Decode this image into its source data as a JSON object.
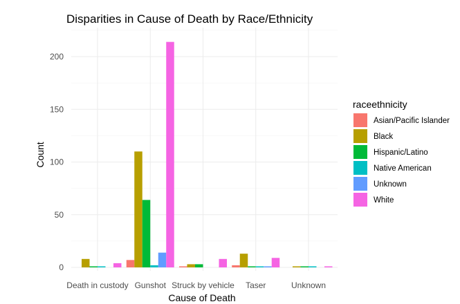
{
  "chart_data": {
    "type": "bar",
    "title": "Disparities in Cause of Death by Race/Ethnicity",
    "xlabel": "Cause of Death",
    "ylabel": "Count",
    "categories": [
      "Death in custody",
      "Gunshot",
      "Struck by vehicle",
      "Taser",
      "Unknown"
    ],
    "ylim": [
      0,
      220
    ],
    "yticks": [
      0,
      50,
      100,
      150,
      200
    ],
    "grid": true,
    "legend_title": "raceethnicity",
    "legend_position": "right",
    "series": [
      {
        "name": "Asian/Pacific Islander",
        "color": "#F8766D",
        "values": [
          0,
          7,
          1,
          2,
          0
        ]
      },
      {
        "name": "Black",
        "color": "#B79F00",
        "values": [
          8,
          110,
          3,
          13,
          1
        ]
      },
      {
        "name": "Hispanic/Latino",
        "color": "#00BA38",
        "values": [
          1,
          64,
          3,
          1,
          1
        ]
      },
      {
        "name": "Native American",
        "color": "#00BFC4",
        "values": [
          1,
          2,
          0,
          1,
          1
        ]
      },
      {
        "name": "Unknown",
        "color": "#619CFF",
        "values": [
          0,
          14,
          0,
          1,
          0
        ]
      },
      {
        "name": "White",
        "color": "#F564E3",
        "values": [
          4,
          214,
          8,
          9,
          1
        ]
      }
    ]
  }
}
